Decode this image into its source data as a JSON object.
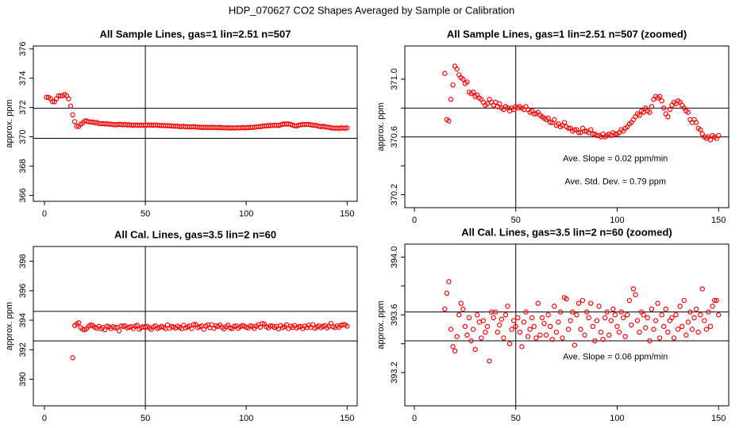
{
  "title": "HDP_070627  CO2 Shapes Averaged by Sample or Calibration",
  "chart_data": [
    {
      "type": "scatter",
      "title": "All Sample Lines, gas=1 lin=2.51 n=507",
      "ylabel": "approx. ppm",
      "color": "#ff0000",
      "xlim": [
        -5.5,
        155
      ],
      "ylim": [
        365.6,
        376.2
      ],
      "xticks": [
        0,
        50,
        100,
        150
      ],
      "yticks": [
        366,
        368,
        370,
        372,
        374,
        376
      ],
      "hlines": [
        369.9,
        371.95
      ],
      "vline": 50,
      "x": [
        1,
        2,
        3,
        4,
        5,
        6,
        7,
        8,
        9,
        10,
        11,
        12,
        13,
        14,
        15,
        16,
        17,
        18,
        19,
        20,
        21,
        22,
        23,
        24,
        25,
        26,
        27,
        28,
        29,
        30,
        31,
        32,
        33,
        34,
        35,
        36,
        37,
        38,
        39,
        40,
        41,
        42,
        43,
        44,
        45,
        46,
        47,
        48,
        49,
        50,
        51,
        52,
        53,
        54,
        55,
        56,
        57,
        58,
        59,
        60,
        61,
        62,
        63,
        64,
        65,
        66,
        67,
        68,
        69,
        70,
        71,
        72,
        73,
        74,
        75,
        76,
        77,
        78,
        79,
        80,
        81,
        82,
        83,
        84,
        85,
        86,
        87,
        88,
        89,
        90,
        91,
        92,
        93,
        94,
        95,
        96,
        97,
        98,
        99,
        100,
        101,
        102,
        103,
        104,
        105,
        106,
        107,
        108,
        109,
        110,
        111,
        112,
        113,
        114,
        115,
        116,
        117,
        118,
        119,
        120,
        121,
        122,
        123,
        124,
        125,
        126,
        127,
        128,
        129,
        130,
        131,
        132,
        133,
        134,
        135,
        136,
        137,
        138,
        139,
        140,
        141,
        142,
        143,
        144,
        145,
        146,
        147,
        148,
        149,
        150
      ],
      "values": [
        372.7,
        372.7,
        372.6,
        372.4,
        372.4,
        372.6,
        372.8,
        372.8,
        372.8,
        372.9,
        372.8,
        372.6,
        372.1,
        371.5,
        371.04,
        370.72,
        370.71,
        370.86,
        370.96,
        371.09,
        371.07,
        371.03,
        371.01,
        371.0,
        370.97,
        370.98,
        370.91,
        370.9,
        370.91,
        370.88,
        370.89,
        370.87,
        370.86,
        370.84,
        370.82,
        370.83,
        370.86,
        370.84,
        370.82,
        370.84,
        370.81,
        370.83,
        370.8,
        370.79,
        370.81,
        370.8,
        370.78,
        370.8,
        370.79,
        370.81,
        370.8,
        370.81,
        370.8,
        370.79,
        370.81,
        370.79,
        370.77,
        370.78,
        370.76,
        370.76,
        370.77,
        370.75,
        370.74,
        370.73,
        370.72,
        370.73,
        370.7,
        370.7,
        370.72,
        370.68,
        370.69,
        370.67,
        370.68,
        370.7,
        370.67,
        370.66,
        370.66,
        370.64,
        370.65,
        370.65,
        370.63,
        370.63,
        370.66,
        370.64,
        370.64,
        370.63,
        370.65,
        370.62,
        370.62,
        370.61,
        370.61,
        370.6,
        370.62,
        370.6,
        370.61,
        370.62,
        370.61,
        370.63,
        370.62,
        370.62,
        370.63,
        370.65,
        370.64,
        370.66,
        370.67,
        370.69,
        370.7,
        370.72,
        370.74,
        370.76,
        370.75,
        370.78,
        370.77,
        370.8,
        370.78,
        370.77,
        370.81,
        370.86,
        370.88,
        370.87,
        370.88,
        370.85,
        370.8,
        370.76,
        370.74,
        370.79,
        370.82,
        370.84,
        370.83,
        370.85,
        370.84,
        370.82,
        370.8,
        370.78,
        370.77,
        370.72,
        370.7,
        370.72,
        370.7,
        370.66,
        370.65,
        370.62,
        370.6,
        370.59,
        370.6,
        370.58,
        370.61,
        370.6,
        370.59,
        370.61
      ]
    },
    {
      "type": "scatter",
      "title": "All Sample Lines, gas=1 lin=2.51 n=507 (zoomed)",
      "ylabel": "approx. ppm",
      "color": "#ff0000",
      "xlim": [
        -4.7,
        155
      ],
      "ylim": [
        370.11,
        371.23
      ],
      "xticks": [
        0,
        50,
        100,
        150
      ],
      "yticks": [
        370.2,
        370.6,
        {
          "value": 371,
          "label": "371.0"
        }
      ],
      "yminorticks": [
        370.4,
        370.8
      ],
      "hlines": [
        370.6,
        370.8
      ],
      "vline": 50,
      "annotations": [
        "Ave. Slope =  0.02  ppm/min",
        "Ave. Std. Dev. =  0.79  ppm"
      ],
      "x": [
        15,
        16,
        17,
        18,
        19,
        20,
        21,
        22,
        23,
        24,
        25,
        26,
        27,
        28,
        29,
        30,
        31,
        32,
        33,
        34,
        35,
        36,
        37,
        38,
        39,
        40,
        41,
        42,
        43,
        44,
        45,
        46,
        47,
        48,
        49,
        50,
        51,
        52,
        53,
        54,
        55,
        56,
        57,
        58,
        59,
        60,
        61,
        62,
        63,
        64,
        65,
        66,
        67,
        68,
        69,
        70,
        71,
        72,
        73,
        74,
        75,
        76,
        77,
        78,
        79,
        80,
        81,
        82,
        83,
        84,
        85,
        86,
        87,
        88,
        89,
        90,
        91,
        92,
        93,
        94,
        95,
        96,
        97,
        98,
        99,
        100,
        101,
        102,
        103,
        104,
        105,
        106,
        107,
        108,
        109,
        110,
        111,
        112,
        113,
        114,
        115,
        116,
        117,
        118,
        119,
        120,
        121,
        122,
        123,
        124,
        125,
        126,
        127,
        128,
        129,
        130,
        131,
        132,
        133,
        134,
        135,
        136,
        137,
        138,
        139,
        140,
        141,
        142,
        143,
        144,
        145,
        146,
        147,
        148,
        149,
        150
      ],
      "values": [
        371.04,
        370.72,
        370.71,
        370.86,
        370.96,
        371.09,
        371.07,
        371.03,
        371.01,
        371.0,
        370.97,
        370.98,
        370.91,
        370.9,
        370.91,
        370.88,
        370.89,
        370.87,
        370.86,
        370.84,
        370.82,
        370.83,
        370.86,
        370.84,
        370.82,
        370.84,
        370.81,
        370.83,
        370.8,
        370.79,
        370.81,
        370.8,
        370.78,
        370.8,
        370.79,
        370.81,
        370.8,
        370.81,
        370.8,
        370.79,
        370.81,
        370.79,
        370.77,
        370.78,
        370.76,
        370.76,
        370.77,
        370.75,
        370.74,
        370.73,
        370.72,
        370.73,
        370.7,
        370.7,
        370.72,
        370.68,
        370.69,
        370.67,
        370.68,
        370.7,
        370.67,
        370.66,
        370.66,
        370.64,
        370.65,
        370.65,
        370.63,
        370.63,
        370.66,
        370.64,
        370.64,
        370.63,
        370.65,
        370.62,
        370.62,
        370.61,
        370.61,
        370.6,
        370.62,
        370.6,
        370.61,
        370.62,
        370.61,
        370.63,
        370.62,
        370.62,
        370.63,
        370.65,
        370.64,
        370.66,
        370.67,
        370.69,
        370.7,
        370.72,
        370.74,
        370.76,
        370.75,
        370.78,
        370.77,
        370.8,
        370.78,
        370.77,
        370.81,
        370.86,
        370.88,
        370.87,
        370.88,
        370.85,
        370.8,
        370.76,
        370.74,
        370.79,
        370.82,
        370.84,
        370.83,
        370.85,
        370.84,
        370.82,
        370.8,
        370.78,
        370.77,
        370.72,
        370.7,
        370.72,
        370.7,
        370.66,
        370.65,
        370.62,
        370.6,
        370.59,
        370.6,
        370.58,
        370.61,
        370.6,
        370.59,
        370.61
      ]
    },
    {
      "type": "scatter",
      "title": "All Cal. Lines, gas=3.5 lin=2 n=60",
      "ylabel": "approx. ppm",
      "color": "#ff0000",
      "xlim": [
        -5.5,
        155
      ],
      "ylim": [
        388.2,
        399.0
      ],
      "xticks": [
        0,
        50,
        100,
        150
      ],
      "yticks": [
        390,
        392,
        394,
        396,
        398
      ],
      "hlines": [
        392.6,
        394.6
      ],
      "vline": 50,
      "x": [
        14,
        15,
        16,
        17,
        18,
        19,
        20,
        21,
        22,
        23,
        24,
        25,
        26,
        27,
        28,
        29,
        30,
        31,
        32,
        33,
        34,
        35,
        36,
        37,
        38,
        39,
        40,
        41,
        42,
        43,
        44,
        45,
        46,
        47,
        48,
        49,
        50,
        51,
        52,
        53,
        54,
        55,
        56,
        57,
        58,
        59,
        60,
        61,
        62,
        63,
        64,
        65,
        66,
        67,
        68,
        69,
        70,
        71,
        72,
        73,
        74,
        75,
        76,
        77,
        78,
        79,
        80,
        81,
        82,
        83,
        84,
        85,
        86,
        87,
        88,
        89,
        90,
        91,
        92,
        93,
        94,
        95,
        96,
        97,
        98,
        99,
        100,
        101,
        102,
        103,
        104,
        105,
        106,
        107,
        108,
        109,
        110,
        111,
        112,
        113,
        114,
        115,
        116,
        117,
        118,
        119,
        120,
        121,
        122,
        123,
        124,
        125,
        126,
        127,
        128,
        129,
        130,
        131,
        132,
        133,
        134,
        135,
        136,
        137,
        138,
        139,
        140,
        141,
        142,
        143,
        144,
        145,
        146,
        147,
        148,
        149,
        150
      ],
      "values": [
        391.46,
        393.64,
        393.75,
        393.83,
        393.5,
        393.38,
        393.35,
        393.45,
        393.6,
        393.68,
        393.64,
        393.52,
        393.46,
        393.58,
        393.42,
        393.5,
        393.36,
        393.6,
        393.55,
        393.44,
        393.56,
        393.48,
        393.52,
        393.28,
        393.62,
        393.58,
        393.62,
        393.48,
        393.53,
        393.57,
        393.44,
        393.6,
        393.66,
        393.4,
        393.5,
        393.56,
        393.52,
        393.58,
        393.48,
        393.38,
        393.55,
        393.62,
        393.45,
        393.5,
        393.58,
        393.52,
        393.44,
        393.68,
        393.46,
        393.58,
        393.54,
        393.46,
        393.6,
        393.52,
        393.43,
        393.66,
        393.48,
        393.55,
        393.62,
        393.44,
        393.72,
        393.71,
        393.5,
        393.56,
        393.62,
        393.39,
        393.6,
        393.68,
        393.5,
        393.7,
        393.46,
        393.62,
        393.58,
        393.68,
        393.52,
        393.42,
        393.56,
        393.66,
        393.48,
        393.43,
        393.58,
        393.62,
        393.46,
        393.56,
        393.64,
        393.6,
        393.52,
        393.48,
        393.62,
        393.58,
        393.45,
        393.6,
        393.7,
        393.53,
        393.78,
        393.74,
        393.56,
        393.48,
        393.62,
        393.6,
        393.51,
        393.58,
        393.42,
        393.64,
        393.5,
        393.56,
        393.68,
        393.44,
        393.6,
        393.52,
        393.64,
        393.48,
        393.56,
        393.58,
        393.44,
        393.6,
        393.5,
        393.66,
        393.52,
        393.7,
        393.46,
        393.55,
        393.62,
        393.5,
        393.58,
        393.64,
        393.48,
        393.6,
        393.78,
        393.56,
        393.5,
        393.62,
        393.52,
        393.66,
        393.7,
        393.7,
        393.6
      ]
    },
    {
      "type": "scatter",
      "title": "All Cal. Lines, gas=3.5 lin=2 n=60 (zoomed)",
      "ylabel": "approx. ppm",
      "color": "#ff0000",
      "xlim": [
        -4.7,
        155
      ],
      "ylim": [
        392.97,
        394.09
      ],
      "xticks": [
        0,
        50,
        100,
        150
      ],
      "yticks": [
        393.2,
        393.6,
        {
          "value": 394,
          "label": "394.0"
        }
      ],
      "yminorticks": [
        393.4,
        393.8
      ],
      "hlines": [
        393.42,
        393.62
      ],
      "vline": 50,
      "annotations": [
        "Ave. Slope =  0.06  ppm/min"
      ],
      "x": [
        15,
        16,
        17,
        18,
        19,
        20,
        21,
        22,
        23,
        24,
        25,
        26,
        27,
        28,
        29,
        30,
        31,
        32,
        33,
        34,
        35,
        36,
        37,
        38,
        39,
        40,
        41,
        42,
        43,
        44,
        45,
        46,
        47,
        48,
        49,
        50,
        51,
        52,
        53,
        54,
        55,
        56,
        57,
        58,
        59,
        60,
        61,
        62,
        63,
        64,
        65,
        66,
        67,
        68,
        69,
        70,
        71,
        72,
        73,
        74,
        75,
        76,
        77,
        78,
        79,
        80,
        81,
        82,
        83,
        84,
        85,
        86,
        87,
        88,
        89,
        90,
        91,
        92,
        93,
        94,
        95,
        96,
        97,
        98,
        99,
        100,
        101,
        102,
        103,
        104,
        105,
        106,
        107,
        108,
        109,
        110,
        111,
        112,
        113,
        114,
        115,
        116,
        117,
        118,
        119,
        120,
        121,
        122,
        123,
        124,
        125,
        126,
        127,
        128,
        129,
        130,
        131,
        132,
        133,
        134,
        135,
        136,
        137,
        138,
        139,
        140,
        141,
        142,
        143,
        144,
        145,
        146,
        147,
        148,
        149,
        150
      ],
      "values": [
        393.64,
        393.75,
        393.83,
        393.5,
        393.38,
        393.35,
        393.45,
        393.6,
        393.68,
        393.64,
        393.52,
        393.46,
        393.58,
        393.42,
        393.5,
        393.36,
        393.6,
        393.55,
        393.44,
        393.56,
        393.48,
        393.52,
        393.28,
        393.62,
        393.58,
        393.62,
        393.48,
        393.53,
        393.57,
        393.44,
        393.6,
        393.66,
        393.4,
        393.5,
        393.56,
        393.52,
        393.58,
        393.48,
        393.38,
        393.55,
        393.62,
        393.45,
        393.5,
        393.58,
        393.52,
        393.44,
        393.68,
        393.46,
        393.58,
        393.54,
        393.46,
        393.6,
        393.52,
        393.43,
        393.66,
        393.48,
        393.55,
        393.62,
        393.44,
        393.72,
        393.71,
        393.5,
        393.56,
        393.62,
        393.39,
        393.6,
        393.68,
        393.5,
        393.7,
        393.46,
        393.62,
        393.58,
        393.68,
        393.52,
        393.42,
        393.56,
        393.66,
        393.48,
        393.43,
        393.58,
        393.62,
        393.46,
        393.56,
        393.64,
        393.6,
        393.52,
        393.48,
        393.62,
        393.58,
        393.45,
        393.6,
        393.7,
        393.53,
        393.78,
        393.74,
        393.56,
        393.48,
        393.62,
        393.6,
        393.51,
        393.58,
        393.42,
        393.64,
        393.5,
        393.56,
        393.68,
        393.44,
        393.6,
        393.52,
        393.64,
        393.48,
        393.56,
        393.58,
        393.44,
        393.6,
        393.5,
        393.66,
        393.52,
        393.7,
        393.46,
        393.55,
        393.62,
        393.5,
        393.58,
        393.64,
        393.48,
        393.6,
        393.78,
        393.56,
        393.5,
        393.62,
        393.52,
        393.66,
        393.7,
        393.7,
        393.6
      ]
    }
  ]
}
